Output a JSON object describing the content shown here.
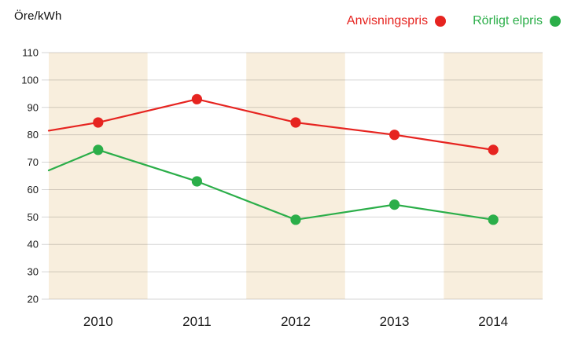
{
  "chart": {
    "y_axis_title": "Öre/kWh",
    "legend": {
      "position": "top-right",
      "items": [
        {
          "label": "Anvisningspris",
          "color": "#e62420"
        },
        {
          "label": "Rörligt elpris",
          "color": "#2bae49"
        }
      ]
    }
  },
  "chart_data": {
    "type": "line",
    "title": "",
    "ylabel": "Öre/kWh",
    "xlabel": "",
    "categories": [
      "2010",
      "2011",
      "2012",
      "2013",
      "2014"
    ],
    "series": [
      {
        "name": "Anvisningspris",
        "color": "#e62420",
        "left_edge_start_value": 81.5,
        "values": [
          84.5,
          93,
          84.5,
          80,
          74.5
        ]
      },
      {
        "name": "Rörligt elpris",
        "color": "#2bae49",
        "left_edge_start_value": 67,
        "values": [
          74.5,
          63,
          49,
          54.5,
          49
        ]
      }
    ],
    "ylim": [
      20,
      110
    ],
    "yticks": [
      110,
      100,
      90,
      80,
      70,
      60,
      50,
      40,
      30,
      20
    ],
    "grid": "horizontal-only",
    "legend_position": "top-right",
    "marker": "circle",
    "plot_bands": {
      "color": "#f8eedd",
      "under_categories": [
        "2010",
        "2012",
        "2014"
      ]
    },
    "colors": {
      "background": "#ffffff",
      "gridline": "#d6d0c4",
      "axis_text": "#1a1a1a"
    }
  }
}
